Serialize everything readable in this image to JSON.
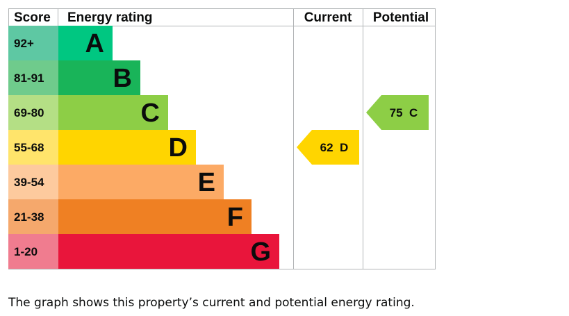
{
  "header": {
    "score": "Score",
    "energy_rating": "Energy rating",
    "current": "Current",
    "potential": "Potential"
  },
  "chart_data": {
    "type": "bar",
    "title": "",
    "bands": [
      {
        "letter": "A",
        "range": "92+",
        "color": "#00c781",
        "score_color": "#5ec8a3"
      },
      {
        "letter": "B",
        "range": "81-91",
        "color": "#19b459",
        "score_color": "#6fcb8c"
      },
      {
        "letter": "C",
        "range": "69-80",
        "color": "#8dce46",
        "score_color": "#b4df85"
      },
      {
        "letter": "D",
        "range": "55-68",
        "color": "#ffd500",
        "score_color": "#ffe46b"
      },
      {
        "letter": "E",
        "range": "39-54",
        "color": "#fcaa65",
        "score_color": "#fdca9e"
      },
      {
        "letter": "F",
        "range": "21-38",
        "color": "#ef8023",
        "score_color": "#f5a86c"
      },
      {
        "letter": "G",
        "range": "1-20",
        "color": "#e9153b",
        "score_color": "#f07c8f"
      }
    ],
    "current": {
      "value": 62,
      "letter": "D",
      "color": "#ffd500"
    },
    "potential": {
      "value": 75,
      "letter": "C",
      "color": "#8dce46"
    }
  },
  "caption": "The graph shows this property’s current and potential energy rating."
}
